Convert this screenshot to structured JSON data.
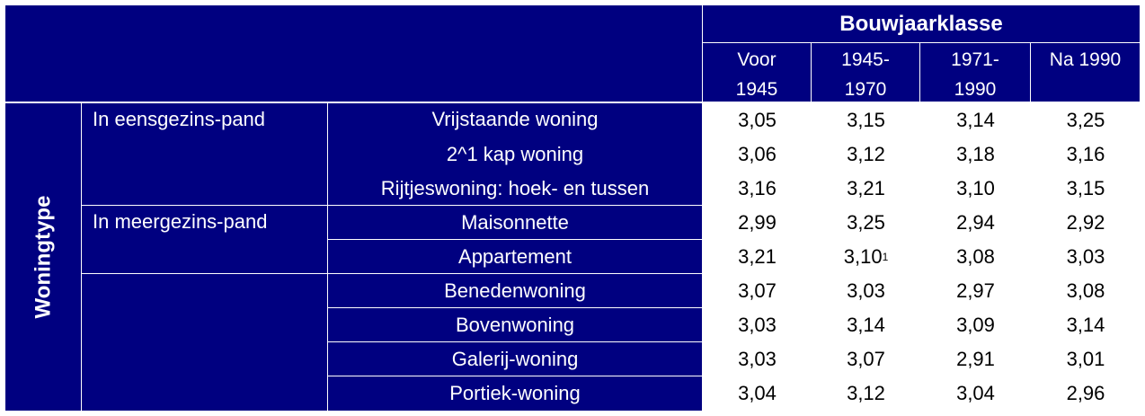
{
  "header": {
    "title": "Bouwjaarklasse",
    "columns": [
      {
        "line1": "Voor",
        "line2": "1945"
      },
      {
        "line1": "1945-",
        "line2": "1970"
      },
      {
        "line1": "1971-",
        "line2": "1990"
      },
      {
        "line1": "Na 1990",
        "line2": ""
      }
    ]
  },
  "side_label": "Woningtype",
  "groups": [
    {
      "label": "In eensgezins-pand"
    },
    {
      "label": "In meergezins-pand"
    }
  ],
  "rows": [
    {
      "label": "Vrijstaande woning",
      "values": [
        "3,05",
        "3,15",
        "3,14",
        "3,25"
      ]
    },
    {
      "label": "2^1 kap woning",
      "values": [
        "3,06",
        "3,12",
        "3,18",
        "3,16"
      ]
    },
    {
      "label": "Rijtjeswoning: hoek- en tussen",
      "values": [
        "3,16",
        "3,21",
        "3,10",
        "3,15"
      ]
    },
    {
      "label": "Maisonnette",
      "values": [
        "2,99",
        "3,25",
        "2,94",
        "2,92"
      ]
    },
    {
      "label": "Appartement",
      "values": [
        "3,21",
        "3,10",
        "3,08",
        "3,03"
      ],
      "footnote": "1"
    },
    {
      "label": "Benedenwoning",
      "values": [
        "3,07",
        "3,03",
        "2,97",
        "3,08"
      ]
    },
    {
      "label": "Bovenwoning",
      "values": [
        "3,03",
        "3,14",
        "3,09",
        "3,14"
      ]
    },
    {
      "label": "Galerij-woning",
      "values": [
        "3,03",
        "3,07",
        "2,91",
        "3,01"
      ]
    },
    {
      "label": "Portiek-woning",
      "values": [
        "3,04",
        "3,12",
        "3,04",
        "2,96"
      ]
    }
  ]
}
